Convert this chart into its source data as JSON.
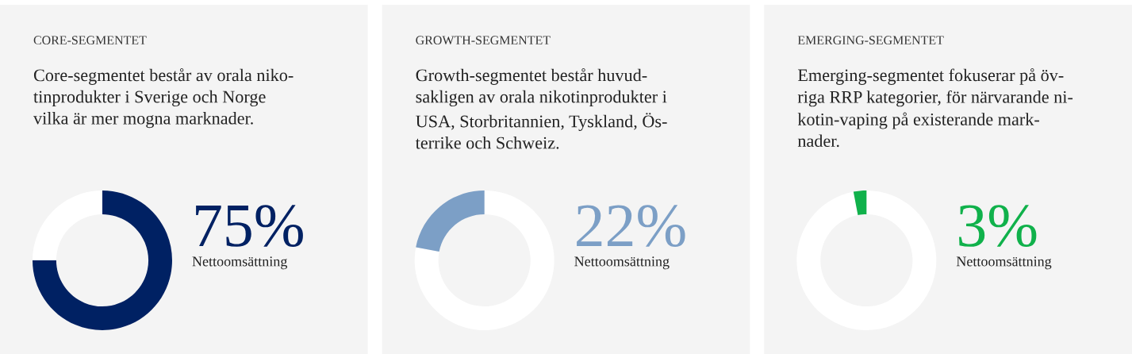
{
  "chart_data": [
    {
      "type": "donut",
      "title": "CORE-SEGMENTET",
      "subtitle": "Core-segmentet består av orala niko-\ntinprodukter i Sverige och Norge\nvilka är mer mogna marknader.",
      "categories": [
        null,
        null
      ],
      "values": [
        75,
        25
      ],
      "colors": [
        "#002163",
        "#ffffff"
      ],
      "annotations": [
        "75%",
        "Nettoomsättning"
      ]
    },
    {
      "type": "donut",
      "title": "GROWTH-SEGMENTET",
      "subtitle": "Growth-segmentet består huvud-\nsakligen av orala nikotinprodukter i\nUSA, Storbritannien, Tyskland, Ös-\nterrike och Schweiz.",
      "categories": [
        null,
        null
      ],
      "values": [
        78,
        22
      ],
      "colors": [
        "#ffffff",
        "#7c9fc6"
      ],
      "annotations": [
        "22%",
        "Nettoomsättning"
      ]
    },
    {
      "type": "donut",
      "title": "EMERGING-SEGMENTET",
      "subtitle": "Emerging-segmentet fokuserar på öv-\nriga RRP kategorier, för närvarande ni-\nkotin-vaping på existerande mark-\nnader.",
      "categories": [
        null,
        null
      ],
      "values": [
        97,
        3
      ],
      "colors": [
        "#ffffff",
        "#10b14b"
      ],
      "annotations": [
        "3%",
        "Nettoomsättning"
      ]
    }
  ]
}
